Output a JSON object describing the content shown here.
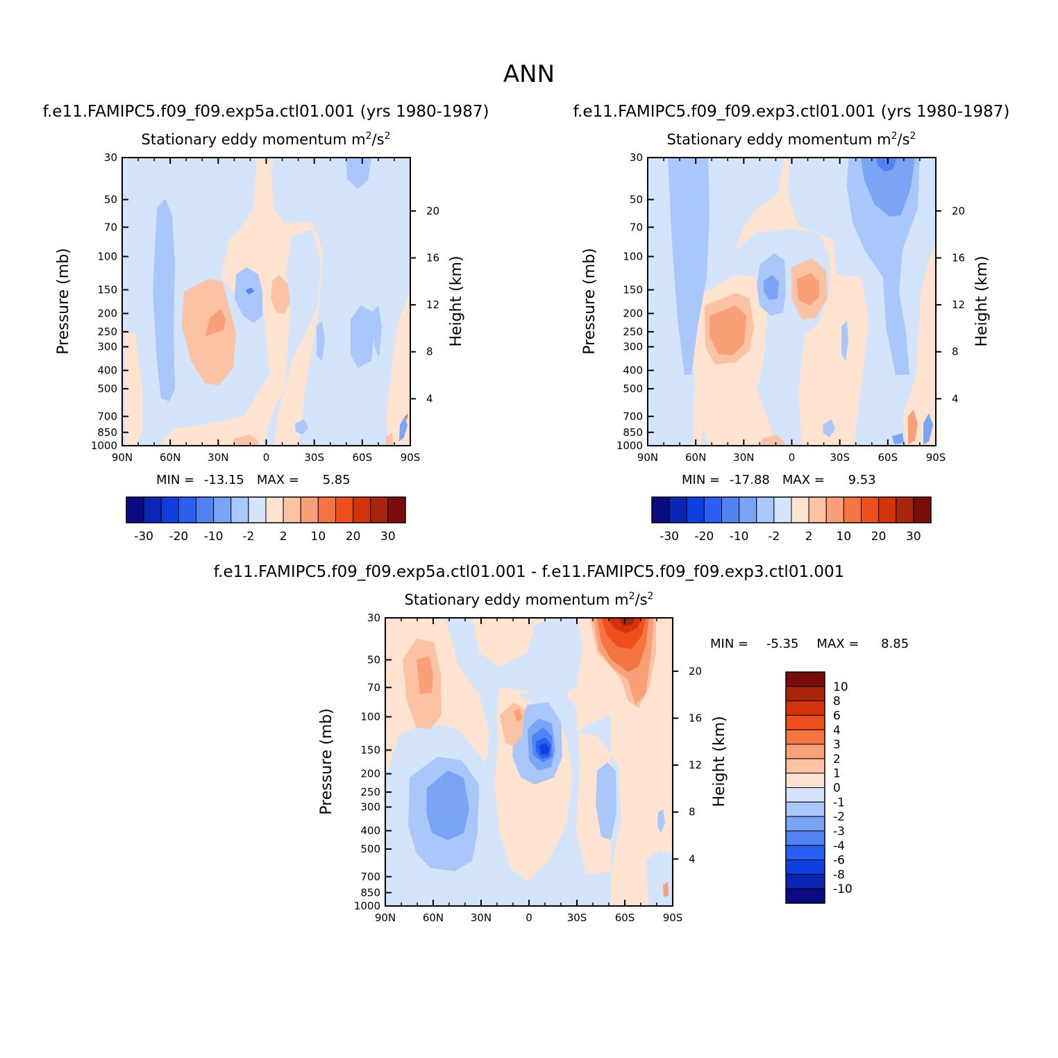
{
  "figure": {
    "title": "ANN"
  },
  "colors": {
    "palette": [
      "#0a0a82",
      "#0a26b4",
      "#0f3fe0",
      "#2a5ff4",
      "#4f84f2",
      "#7aa4f6",
      "#a9c7fa",
      "#d4e5fb",
      "#fde3d0",
      "#fcc2a4",
      "#faa078",
      "#f57542",
      "#ee4f1c",
      "#d4330a",
      "#a8240a",
      "#7a0c0c"
    ]
  },
  "chart_data": [
    {
      "id": "panel-left",
      "type": "heatmap",
      "case_title": "f.e11.FAMIPC5.f09_f09.exp5a.ctl01.001 (yrs 1980-1987)",
      "variable_label": "Stationary eddy momentum  m",
      "units_sup": "2",
      "units_mid": "/s",
      "units_sup2": "2",
      "ylabel": "Pressure (mb)",
      "ylabel_right": "Height (km)",
      "x_ticks": [
        "90N",
        "60N",
        "30N",
        "0",
        "30S",
        "60S",
        "90S"
      ],
      "y_ticks": [
        "30",
        "50",
        "70",
        "100",
        "150",
        "200",
        "250",
        "300",
        "400",
        "500",
        "700",
        "850",
        "1000"
      ],
      "height_ticks": [
        "20",
        "16",
        "12",
        "8",
        "4"
      ],
      "min_label": "MIN = ",
      "min_value": "-13.15",
      "max_label": "MAX = ",
      "max_value": "5.85",
      "min": -13.15,
      "max": 5.85,
      "colorbar_levels": [
        -30,
        -25,
        -20,
        -15,
        -10,
        -5,
        -2,
        0,
        2,
        5,
        10,
        15,
        20,
        25,
        30
      ],
      "colorbar_labels": [
        "-30",
        "-20",
        "-10",
        "-2",
        "2",
        "10",
        "20",
        "30"
      ],
      "background_level": 0
    },
    {
      "id": "panel-right",
      "type": "heatmap",
      "case_title": "f.e11.FAMIPC5.f09_f09.exp3.ctl01.001 (yrs 1980-1987)",
      "variable_label": "Stationary eddy momentum  m",
      "units_sup": "2",
      "units_mid": "/s",
      "units_sup2": "2",
      "ylabel": "Pressure (mb)",
      "ylabel_right": "Height (km)",
      "x_ticks": [
        "90N",
        "60N",
        "30N",
        "0",
        "30S",
        "60S",
        "90S"
      ],
      "y_ticks": [
        "30",
        "50",
        "70",
        "100",
        "150",
        "200",
        "250",
        "300",
        "400",
        "500",
        "700",
        "850",
        "1000"
      ],
      "height_ticks": [
        "20",
        "16",
        "12",
        "8",
        "4"
      ],
      "min_label": "MIN = ",
      "min_value": "-17.88",
      "max_label": "MAX = ",
      "max_value": "9.53",
      "min": -17.88,
      "max": 9.53,
      "colorbar_levels": [
        -30,
        -25,
        -20,
        -15,
        -10,
        -5,
        -2,
        0,
        2,
        5,
        10,
        15,
        20,
        25,
        30
      ],
      "colorbar_labels": [
        "-30",
        "-20",
        "-10",
        "-2",
        "2",
        "10",
        "20",
        "30"
      ],
      "background_level": 0
    },
    {
      "id": "panel-diff",
      "type": "heatmap",
      "case_title": "f.e11.FAMIPC5.f09_f09.exp5a.ctl01.001 - f.e11.FAMIPC5.f09_f09.exp3.ctl01.001",
      "variable_label": "Stationary eddy momentum  m",
      "units_sup": "2",
      "units_mid": "/s",
      "units_sup2": "2",
      "ylabel": "Pressure (mb)",
      "ylabel_right": "Height (km)",
      "x_ticks": [
        "90N",
        "60N",
        "30N",
        "0",
        "30S",
        "60S",
        "90S"
      ],
      "y_ticks": [
        "30",
        "50",
        "70",
        "100",
        "150",
        "200",
        "250",
        "300",
        "400",
        "500",
        "700",
        "850",
        "1000"
      ],
      "height_ticks": [
        "20",
        "16",
        "12",
        "8",
        "4"
      ],
      "min_label": "MIN = ",
      "min_value": "-5.35",
      "max_label": "MAX = ",
      "max_value": "8.85",
      "min": -5.35,
      "max": 8.85,
      "colorbar_levels": [
        10,
        8,
        6,
        4,
        3,
        2,
        1,
        0,
        -1,
        -2,
        -3,
        -4,
        -6,
        -8,
        -10
      ],
      "colorbar_labels": [
        "10",
        "8",
        "6",
        "4",
        "3",
        "2",
        "1",
        "0",
        "-1",
        "-2",
        "-3",
        "-4",
        "-6",
        "-8",
        "-10"
      ],
      "background_level": 0
    }
  ]
}
